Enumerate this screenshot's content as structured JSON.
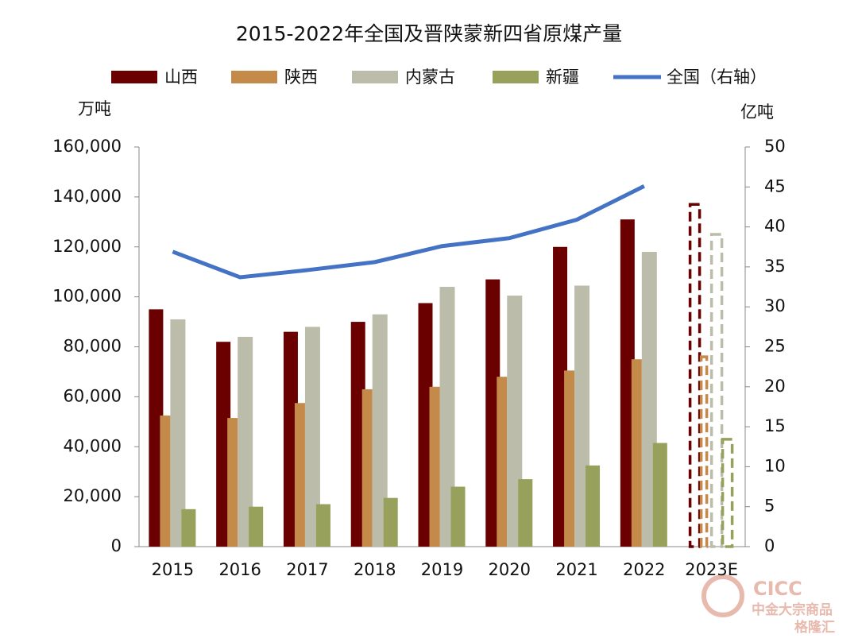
{
  "chart_data": {
    "type": "bar",
    "title": "2015-2022年全国及晋陕蒙新四省原煤产量",
    "y_label": "万吨",
    "y2_label": "亿吨",
    "categories": [
      "2015",
      "2016",
      "2017",
      "2018",
      "2019",
      "2020",
      "2021",
      "2022",
      "2023E"
    ],
    "dashed_last": true,
    "series": [
      {
        "name": "山西",
        "color": "#6b0000",
        "values": [
          95000,
          82000,
          86000,
          90000,
          97500,
          107000,
          120000,
          131000,
          137000
        ]
      },
      {
        "name": "陕西",
        "color": "#c48a4a",
        "values": [
          52500,
          51500,
          57500,
          63000,
          64000,
          68000,
          70500,
          75000,
          76000
        ]
      },
      {
        "name": "内蒙古",
        "color": "#bcbcaa",
        "values": [
          91000,
          84000,
          88000,
          93000,
          104000,
          100500,
          104500,
          118000,
          125000
        ]
      },
      {
        "name": "新疆",
        "color": "#97a15c",
        "values": [
          15000,
          16000,
          17000,
          19500,
          24000,
          27000,
          32500,
          41500,
          43000
        ]
      },
      {
        "name": "全国（右轴）",
        "color": "#4472c4",
        "type": "line",
        "axis": "y2",
        "values": [
          36.9,
          33.7,
          34.6,
          35.6,
          37.6,
          38.6,
          40.9,
          45.1,
          null
        ]
      }
    ],
    "ylim": [
      0,
      160000
    ],
    "yticks": [
      0,
      {
        "value": 20000,
        "label": "20,000"
      },
      {
        "value": 40000,
        "label": "40,000"
      },
      {
        "value": 60000,
        "label": "60,000"
      },
      {
        "value": 80000,
        "label": "80,000"
      },
      {
        "value": 100000,
        "label": "100,000"
      },
      {
        "value": 120000,
        "label": "120,000"
      },
      {
        "value": 140000,
        "label": "140,000"
      },
      {
        "value": 160000,
        "label": "160,000"
      }
    ],
    "y2lim": [
      0,
      50
    ],
    "y2ticks": [
      0,
      5,
      10,
      15,
      20,
      25,
      30,
      35,
      40,
      45,
      50
    ],
    "watermark": [
      "CICC",
      "中金大宗商品",
      "格隆汇"
    ]
  }
}
